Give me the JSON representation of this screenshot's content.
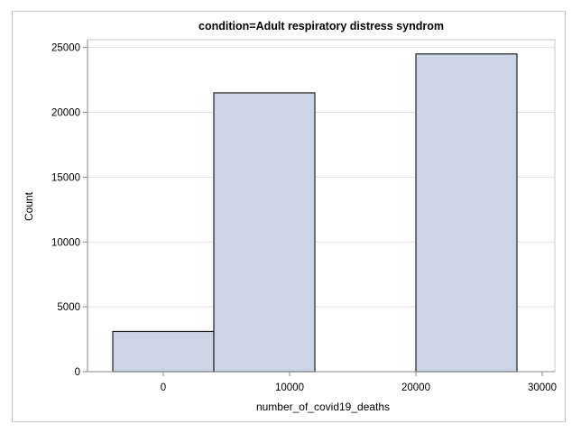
{
  "chart_data": {
    "type": "bar",
    "title": "condition=Adult respiratory distress syndrom",
    "xlabel": "number_of_covid19_deaths",
    "ylabel": "Count",
    "xlim": [
      -6000,
      31000
    ],
    "ylim": [
      0,
      25600
    ],
    "xticks": [
      0,
      10000,
      20000,
      30000
    ],
    "xtick_labels": [
      "0",
      "10000",
      "20000",
      "30000"
    ],
    "yticks": [
      0,
      5000,
      10000,
      15000,
      20000,
      25000
    ],
    "ytick_labels": [
      "0",
      "5000",
      "10000",
      "15000",
      "20000",
      "25000"
    ],
    "bins": [
      {
        "x0": -4000,
        "x1": 4000,
        "count": 3100
      },
      {
        "x0": 4000,
        "x1": 12000,
        "count": 21500
      },
      {
        "x0": 12000,
        "x1": 20000,
        "count": 0
      },
      {
        "x0": 20000,
        "x1": 28000,
        "count": 24500
      }
    ],
    "grid": "horizontal",
    "legend": "none"
  },
  "colors": {
    "bar_fill": "#cbd5e6",
    "bar_edge": "#1f1f1f",
    "grid": "#e2e2e2",
    "axis": "#8a8a8a"
  }
}
